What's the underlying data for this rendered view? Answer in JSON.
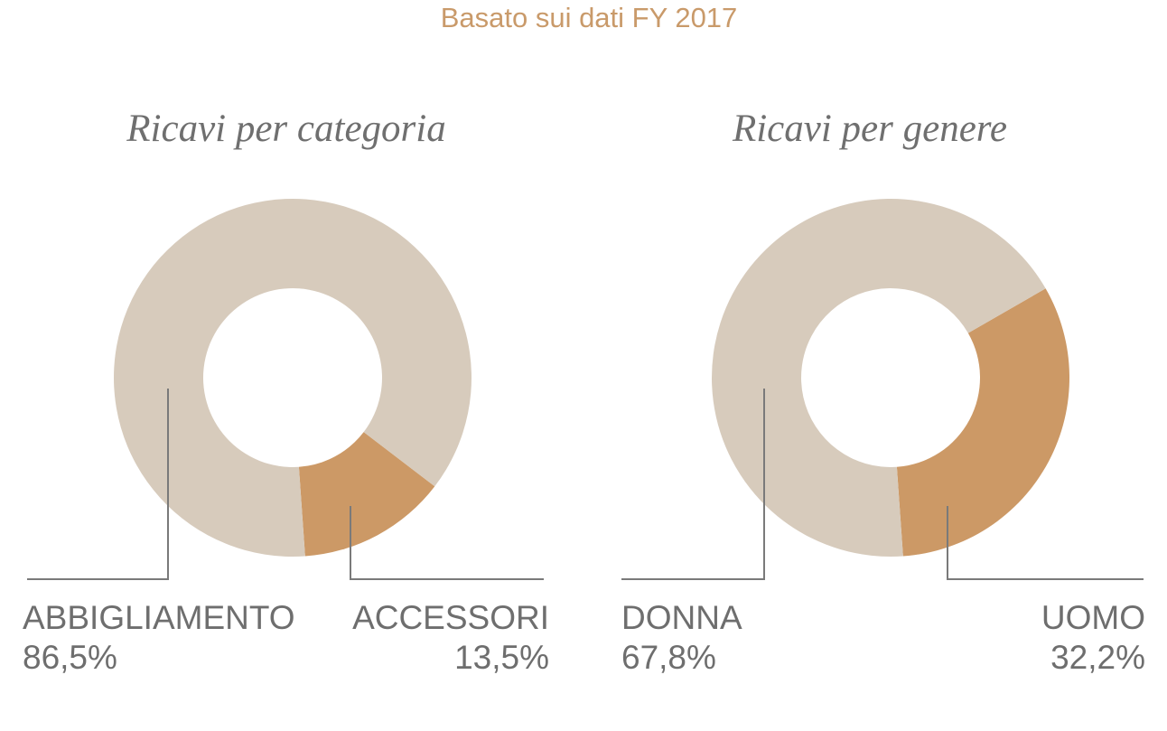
{
  "subtitle": "Basato sui dati FY 2017",
  "colors": {
    "light": "#d7cbbc",
    "accent": "#cc9966",
    "line": "#7a7a7a",
    "text": "#6e6e6e",
    "subtitle": "#c99a6a"
  },
  "chart_data": [
    {
      "type": "pie",
      "variant": "donut",
      "title": "Ricavi per categoria",
      "categories": [
        "ABBIGLIAMENTO",
        "ACCESSORI"
      ],
      "values": [
        86.5,
        13.5
      ],
      "labels": [
        "86,5%",
        "13,5%"
      ]
    },
    {
      "type": "pie",
      "variant": "donut",
      "title": "Ricavi per genere",
      "categories": [
        "DONNA",
        "UOMO"
      ],
      "values": [
        67.8,
        32.2
      ],
      "labels": [
        "67,8%",
        "32,2%"
      ]
    }
  ]
}
